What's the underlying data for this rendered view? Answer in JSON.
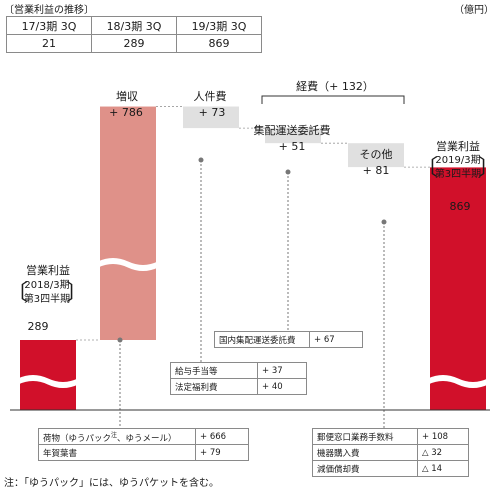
{
  "header": {
    "title": "〔営業利益の推移〕",
    "unit": "（億円）"
  },
  "history_table": {
    "headers": [
      "17/3期 3Q",
      "18/3期 3Q",
      "19/3期 3Q"
    ],
    "values": [
      "21",
      "289",
      "869"
    ]
  },
  "chart_data": {
    "type": "bar",
    "subtype": "waterfall",
    "categories": [
      "営業利益",
      "増収",
      "人件費",
      "集配運送委託費",
      "その他",
      "営業利益"
    ],
    "values": [
      289,
      786,
      73,
      51,
      81,
      869
    ],
    "value_labels": [
      "289",
      "+ 786",
      "+ 73",
      "+ 51",
      "+ 81",
      "869"
    ],
    "axis_break": true,
    "colors": {
      "operating_profit": "#d1102a",
      "revenue_increase": "#df9189",
      "expense": "#e0e0e0"
    }
  },
  "labels": {
    "start_title": "営業利益",
    "start_period": "2018/3期",
    "start_period2": "第3四半期",
    "start_value": "289",
    "revenue_title": "増収",
    "revenue_value": "+ 786",
    "labor_title": "人件費",
    "labor_value": "+ 73",
    "expenses_group": "経費（+ 132）",
    "delivery_title": "集配運送委託費",
    "delivery_value": "+ 51",
    "other_title": "その他",
    "other_value": "+ 81",
    "end_title": "営業利益",
    "end_period": "2019/3期",
    "end_period2": "第3四半期",
    "end_value": "869"
  },
  "breakdowns": {
    "revenue": [
      {
        "name": "荷物（ゆうパック",
        "sup": "注",
        "name2": "、ゆうメール）",
        "value": "+ 666"
      },
      {
        "name": "年賀葉書",
        "sup": "",
        "name2": "",
        "value": "+ 79"
      }
    ],
    "labor": [
      {
        "name": "給与手当等",
        "value": "+ 37"
      },
      {
        "name": "法定福利費",
        "value": "+ 40"
      }
    ],
    "delivery": [
      {
        "name": "国内集配運送委託費",
        "value": "+ 67"
      }
    ],
    "other": [
      {
        "name": "郵便窓口業務手数料",
        "value": "+ 108"
      },
      {
        "name": "機器購入費",
        "value": "△ 32"
      },
      {
        "name": "減価償却費",
        "value": "△ 14"
      }
    ]
  },
  "footnote": "注：「ゆうパック」には、ゆうパケットを含む。"
}
